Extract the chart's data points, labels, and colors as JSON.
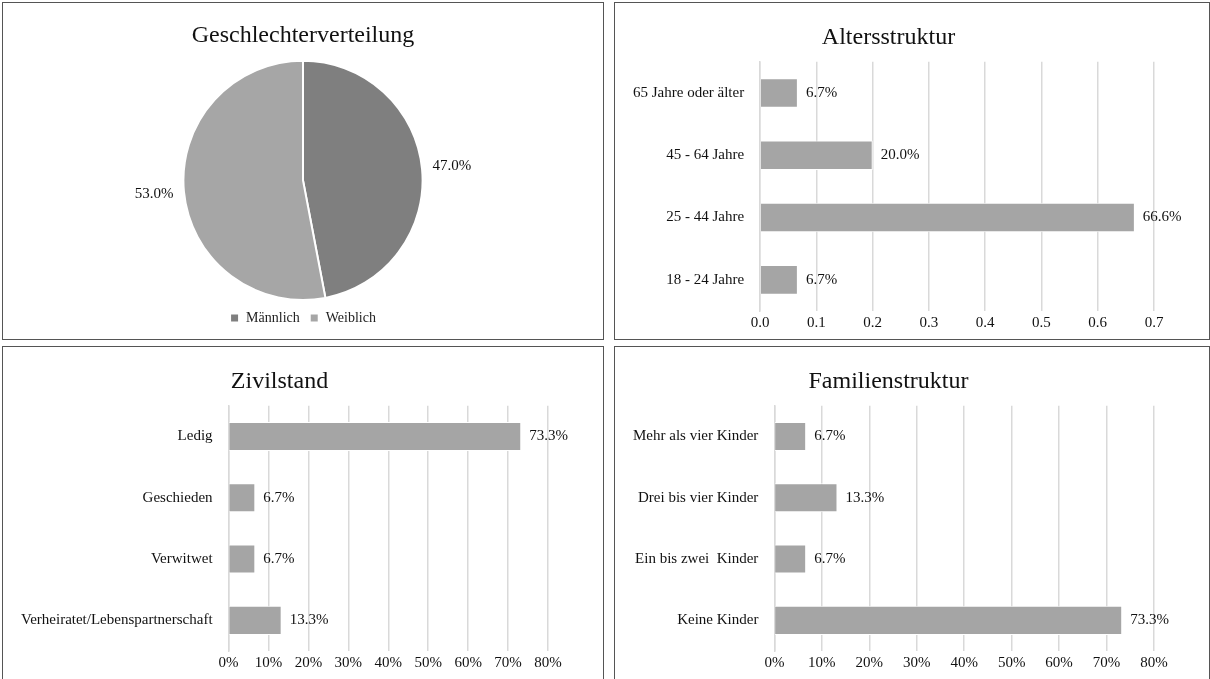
{
  "chart_data": [
    {
      "type": "pie",
      "title": "Geschlechterverteilung",
      "categories": [
        "Männlich",
        "Weiblich"
      ],
      "values": [
        47,
        53
      ],
      "colors": [
        "#7f7f7f",
        "#a6a6a6"
      ],
      "value_labels": [
        "47.0%",
        "53.0%"
      ],
      "legend": "bottom"
    },
    {
      "type": "bar",
      "orientation": "horizontal",
      "title": "Altersstruktur",
      "categories": [
        "65 Jahre oder älter",
        "45 - 64 Jahre",
        "25 - 44 Jahre",
        "18 - 24 Jahre"
      ],
      "values": [
        0.067,
        0.2,
        0.666,
        0.067
      ],
      "color": "#a5a5a5",
      "value_labels": [
        "6.7%",
        "20.0%",
        "66.6%",
        "6.7%"
      ],
      "xlim": [
        0,
        0.7
      ],
      "xticks": [
        {
          "value": 0,
          "label": "0.0"
        },
        0.1,
        0.2,
        0.3,
        0.4,
        0.5,
        0.6,
        0.7
      ],
      "grid": "x"
    },
    {
      "type": "bar",
      "orientation": "horizontal",
      "title": "Zivilstand",
      "categories": [
        "Ledig",
        "Geschieden",
        "Verwitwet",
        "Verheiratet/Lebenspartnerschaft"
      ],
      "values": [
        73.3,
        6.7,
        6.7,
        13.3
      ],
      "color": "#a5a5a5",
      "value_labels": [
        "73.3%",
        "6.7%",
        "6.7%",
        "13.3%"
      ],
      "xlim": [
        0,
        80
      ],
      "xticks": [
        {
          "value": 0,
          "label": "0%"
        },
        {
          "value": 10,
          "label": "10%"
        },
        {
          "value": 20,
          "label": "20%"
        },
        {
          "value": 30,
          "label": "30%"
        },
        {
          "value": 40,
          "label": "40%"
        },
        {
          "value": 50,
          "label": "50%"
        },
        {
          "value": 60,
          "label": "60%"
        },
        {
          "value": 70,
          "label": "70%"
        },
        {
          "value": 80,
          "label": "80%"
        }
      ],
      "grid": "x"
    },
    {
      "type": "bar",
      "orientation": "horizontal",
      "title": "Familienstruktur",
      "categories": [
        "Mehr als vier Kinder",
        "Drei bis vier Kinder",
        "Ein bis zwei  Kinder",
        "Keine Kinder"
      ],
      "values": [
        6.7,
        13.3,
        6.7,
        73.3
      ],
      "color": "#a5a5a5",
      "value_labels": [
        "6.7%",
        "13.3%",
        "6.7%",
        "73.3%"
      ],
      "xlim": [
        0,
        80
      ],
      "xticks": [
        {
          "value": 0,
          "label": "0%"
        },
        {
          "value": 10,
          "label": "10%"
        },
        {
          "value": 20,
          "label": "20%"
        },
        {
          "value": 30,
          "label": "30%"
        },
        {
          "value": 40,
          "label": "40%"
        },
        {
          "value": 50,
          "label": "50%"
        },
        {
          "value": 60,
          "label": "60%"
        },
        {
          "value": 70,
          "label": "70%"
        },
        {
          "value": 80,
          "label": "80%"
        }
      ],
      "grid": "x"
    }
  ]
}
